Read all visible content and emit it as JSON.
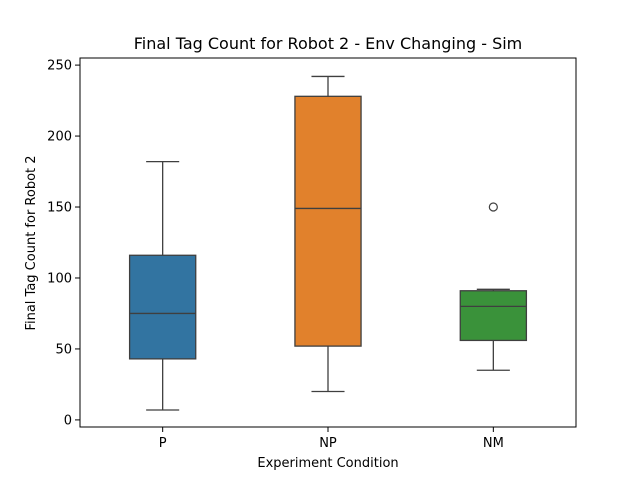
{
  "chart_data": {
    "type": "box",
    "title": "Final Tag Count for Robot 2 - Env Changing - Sim",
    "xlabel": "Experiment Condition",
    "ylabel": "Final Tag Count for Robot 2",
    "ylim": [
      -5,
      255
    ],
    "yticks": [
      0,
      50,
      100,
      150,
      200,
      250
    ],
    "grid": false,
    "categories": [
      "P",
      "NP",
      "NM"
    ],
    "boxes": [
      {
        "category": "P",
        "color": "#3274a1",
        "whisker_low": 7,
        "q1": 43,
        "median": 75,
        "q3": 116,
        "whisker_high": 182,
        "outliers": []
      },
      {
        "category": "NP",
        "color": "#e1812c",
        "whisker_low": 20,
        "q1": 52,
        "median": 149,
        "q3": 228,
        "whisker_high": 242,
        "outliers": []
      },
      {
        "category": "NM",
        "color": "#3a923a",
        "whisker_low": 35,
        "q1": 56,
        "median": 80,
        "q3": 91,
        "whisker_high": 92,
        "outliers": [
          150
        ]
      }
    ]
  }
}
